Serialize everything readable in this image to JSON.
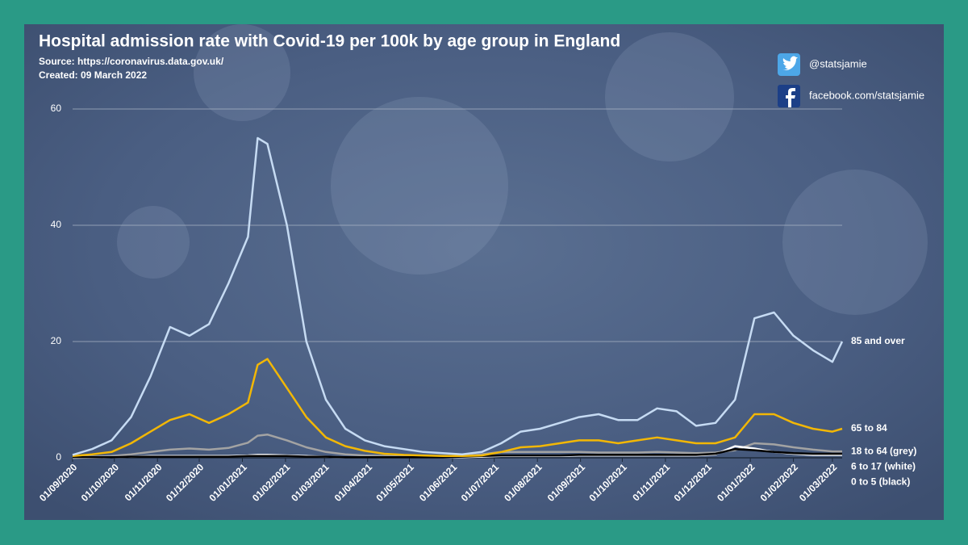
{
  "chart_data": {
    "type": "line",
    "title": "Hospital admission rate with Covid-19 per 100k by age group in England",
    "source": "Source: https://coronavirus.data.gov.uk/",
    "created": "Created: 09 March 2022",
    "twitter": "@statsjamie",
    "facebook": "facebook.com/statsjamie",
    "x": [
      "01/09/2020",
      "15/09/2020",
      "29/09/2020",
      "13/10/2020",
      "27/10/2020",
      "10/11/2020",
      "24/11/2020",
      "08/12/2020",
      "22/12/2020",
      "05/01/2021",
      "12/01/2021",
      "19/01/2021",
      "02/02/2021",
      "16/02/2021",
      "02/03/2021",
      "16/03/2021",
      "30/03/2021",
      "13/04/2021",
      "27/04/2021",
      "11/05/2021",
      "25/05/2021",
      "08/06/2021",
      "22/06/2021",
      "06/07/2021",
      "20/07/2021",
      "03/08/2021",
      "17/08/2021",
      "31/08/2021",
      "14/09/2021",
      "28/09/2021",
      "12/10/2021",
      "26/10/2021",
      "09/11/2021",
      "23/11/2021",
      "07/12/2021",
      "21/12/2021",
      "04/01/2022",
      "18/01/2022",
      "01/02/2022",
      "15/02/2022",
      "01/03/2022",
      "08/03/2022"
    ],
    "series": [
      {
        "name": "85 and over",
        "color": "#c6dbf3",
        "values": [
          0.5,
          1.5,
          3,
          7,
          14,
          22.5,
          21,
          23,
          30,
          38,
          55,
          54,
          40,
          20,
          10,
          5,
          3,
          2,
          1.5,
          1,
          0.8,
          0.6,
          1,
          2.5,
          4.5,
          5,
          6,
          7,
          7.5,
          6.5,
          6.5,
          8.5,
          8,
          5.5,
          6,
          10,
          24,
          25,
          21,
          18.5,
          16.5,
          20
        ]
      },
      {
        "name": "65 to 84",
        "color": "#f2b705",
        "values": [
          0.3,
          0.6,
          1,
          2.5,
          4.5,
          6.5,
          7.5,
          6,
          7.5,
          9.5,
          16,
          17,
          12,
          7,
          3.5,
          2,
          1.2,
          0.7,
          0.5,
          0.4,
          0.3,
          0.3,
          0.4,
          1,
          1.8,
          2,
          2.5,
          3,
          3,
          2.5,
          3,
          3.5,
          3,
          2.5,
          2.5,
          3.5,
          7.5,
          7.5,
          6,
          5,
          4.5,
          5
        ]
      },
      {
        "name": "18 to 64 (grey)",
        "color": "#a3a3a3",
        "values": [
          0.1,
          0.2,
          0.3,
          0.6,
          1,
          1.4,
          1.6,
          1.4,
          1.7,
          2.6,
          3.8,
          4,
          3,
          1.8,
          1,
          0.6,
          0.4,
          0.3,
          0.2,
          0.2,
          0.2,
          0.3,
          0.6,
          1,
          1,
          1,
          1,
          1,
          0.9,
          0.9,
          0.9,
          1,
          0.9,
          0.8,
          0.9,
          1.3,
          2.5,
          2.3,
          1.8,
          1.4,
          1.1,
          1.1
        ]
      },
      {
        "name": "6 to 17 (white)",
        "color": "#ffffff",
        "values": [
          0,
          0.05,
          0.1,
          0.2,
          0.3,
          0.3,
          0.3,
          0.3,
          0.3,
          0.4,
          0.5,
          0.5,
          0.4,
          0.3,
          0.2,
          0.1,
          0.1,
          0.1,
          0.1,
          0.1,
          0.1,
          0.1,
          0.2,
          0.3,
          0.3,
          0.3,
          0.3,
          0.4,
          0.4,
          0.4,
          0.4,
          0.4,
          0.4,
          0.4,
          0.6,
          2,
          1.6,
          1,
          0.7,
          0.5,
          0.5,
          0.5
        ]
      },
      {
        "name": "0 to 5 (black)",
        "color": "#000000",
        "values": [
          0.1,
          0.1,
          0.1,
          0.2,
          0.2,
          0.2,
          0.2,
          0.2,
          0.2,
          0.3,
          0.3,
          0.3,
          0.3,
          0.2,
          0.2,
          0.1,
          0.1,
          0.1,
          0.1,
          0.1,
          0.1,
          0.2,
          0.3,
          0.4,
          0.4,
          0.4,
          0.4,
          0.5,
          0.5,
          0.5,
          0.5,
          0.5,
          0.5,
          0.5,
          0.7,
          1.5,
          1.3,
          1,
          0.8,
          0.7,
          0.7,
          0.7
        ]
      }
    ],
    "xlim": [
      "01/09/2020",
      "08/03/2022"
    ],
    "xticks": [
      "01/09/2020",
      "01/10/2020",
      "01/11/2020",
      "01/12/2020",
      "01/01/2021",
      "01/02/2021",
      "01/03/2021",
      "01/04/2021",
      "01/05/2021",
      "01/06/2021",
      "01/07/2021",
      "01/08/2021",
      "01/09/2021",
      "01/10/2021",
      "01/11/2021",
      "01/12/2021",
      "01/01/2022",
      "01/02/2022",
      "01/03/2022"
    ],
    "ylim": [
      0,
      60
    ],
    "yticks": [
      0,
      20,
      40,
      60
    ],
    "grid": true
  }
}
